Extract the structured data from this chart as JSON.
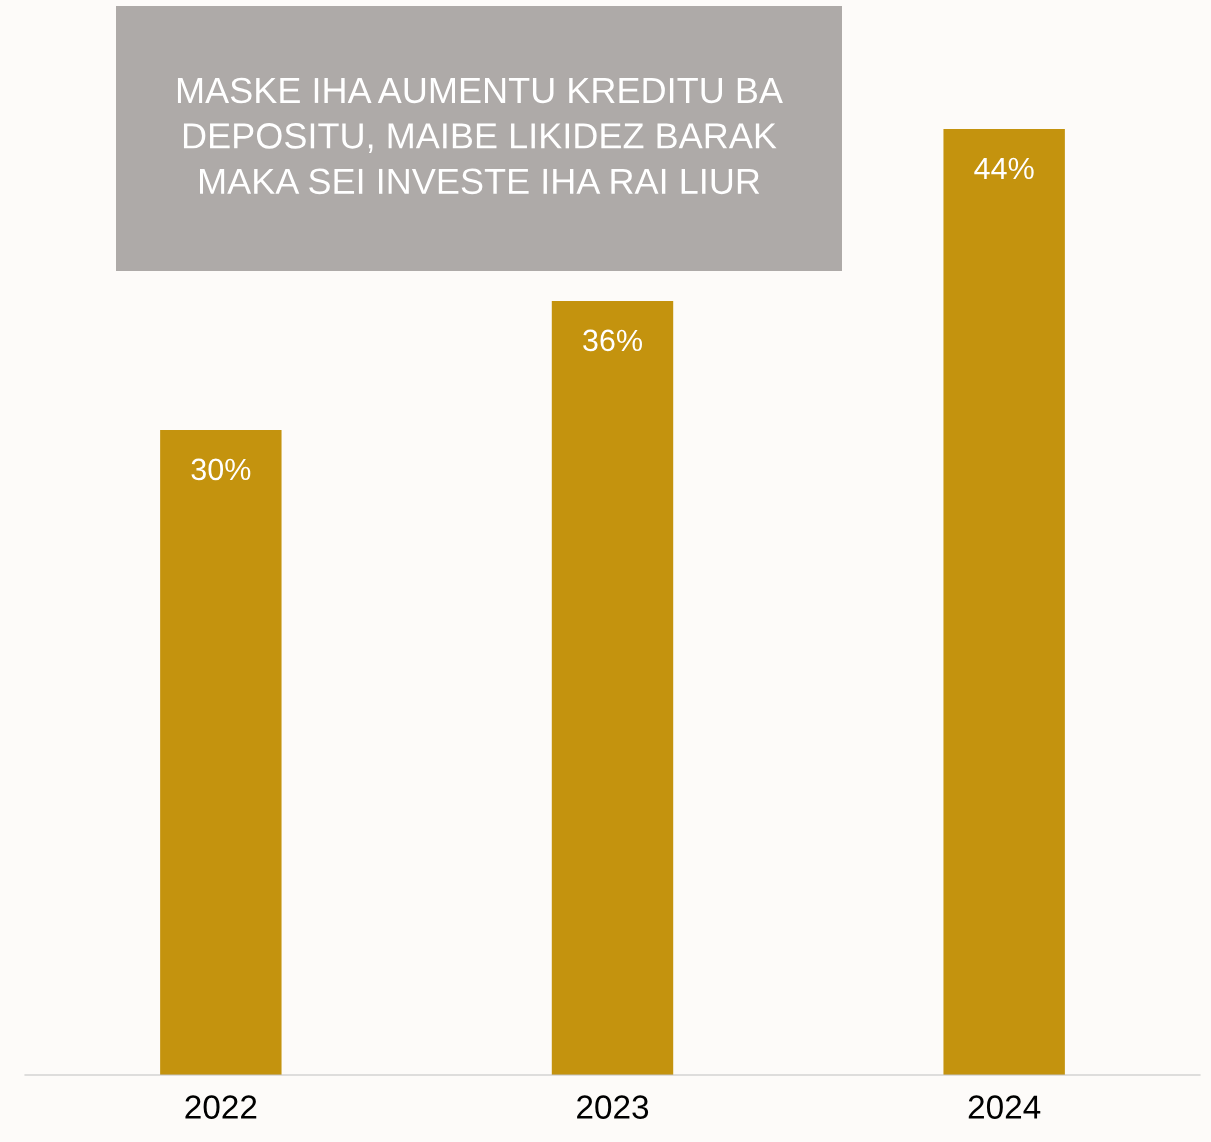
{
  "chart_data": {
    "type": "bar",
    "title": "MASKE IHA AUMENTU KREDITU BA\nDEPOSITU, MAIBE LIKIDEZ BARAK\nMAKA SEI INVESTE IHA RAI LIUR",
    "categories": [
      "2022",
      "2023",
      "2024"
    ],
    "values": [
      30,
      36,
      44
    ],
    "color": "#c4930e",
    "value_labels": [
      "30%",
      "36%",
      "44%"
    ],
    "grid": false,
    "legend": false
  }
}
